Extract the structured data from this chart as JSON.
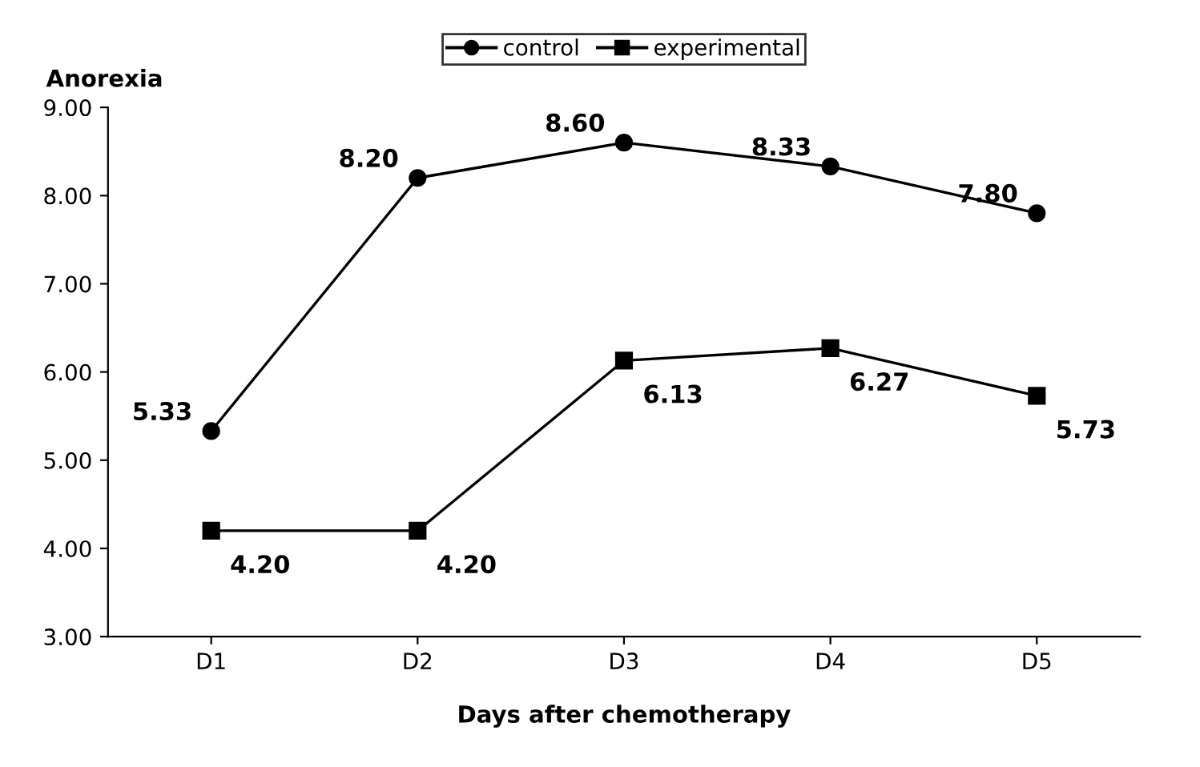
{
  "chart_data": {
    "type": "line",
    "ylabel": "Anorexia",
    "xlabel": "Days after chemotherapy",
    "categories": [
      "D1",
      "D2",
      "D3",
      "D4",
      "D5"
    ],
    "series": [
      {
        "name": "control",
        "color": "#000000",
        "marker": "circle",
        "values": [
          5.33,
          8.2,
          8.6,
          8.33,
          7.8
        ],
        "value_labels": [
          "5.33",
          "8.20",
          "8.60",
          "8.33",
          "7.80"
        ]
      },
      {
        "name": "experimental",
        "color": "#000000",
        "marker": "square",
        "values": [
          4.2,
          4.2,
          6.13,
          6.27,
          5.73
        ],
        "value_labels": [
          "4.20",
          "4.20",
          "6.13",
          "6.27",
          "5.73"
        ]
      }
    ],
    "ylim": [
      3,
      9
    ],
    "yticks": [
      {
        "value": 3,
        "label": "3.00"
      },
      {
        "value": 4,
        "label": "4.00"
      },
      {
        "value": 5,
        "label": "5.00"
      },
      {
        "value": 6,
        "label": "6.00"
      },
      {
        "value": 7,
        "label": "7.00"
      },
      {
        "value": 8,
        "label": "8.00"
      },
      {
        "value": 9,
        "label": "9.00"
      }
    ],
    "legend": "top",
    "grid": false,
    "line_style": "solid"
  }
}
